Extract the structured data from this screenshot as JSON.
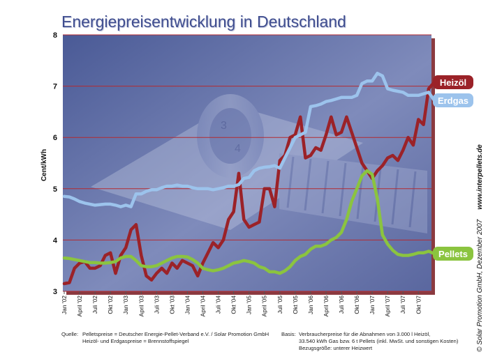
{
  "chart_data": {
    "type": "line",
    "title": "Energiepreisentwicklung in Deutschland",
    "ylabel": "Cent/kWh",
    "xlabel": "",
    "ylim": [
      3,
      8
    ],
    "yticks": [
      "3",
      "4",
      "5",
      "6",
      "7",
      "8"
    ],
    "grid": "horizontal",
    "x_tick_labels": [
      "Jan '02",
      "April '02",
      "Juli '02",
      "Okt '02",
      "Jan '03",
      "April '03",
      "Juli '03",
      "Okt '03",
      "Jan '04",
      "April '04",
      "Juli '04",
      "Okt '04",
      "Jan '05",
      "April '05",
      "Juli '05",
      "Okt '05",
      "Jan '06",
      "April '06",
      "Juli '06",
      "Okt '06",
      "Jan '07",
      "April '07",
      "Juli '07",
      "Okt '07"
    ],
    "x_period": "monthly, Jan 2002 – Dec 2007",
    "series": [
      {
        "name": "Heizöl",
        "color": "#9b2228",
        "values": [
          3.15,
          3.17,
          3.45,
          3.55,
          3.58,
          3.45,
          3.45,
          3.5,
          3.7,
          3.75,
          3.35,
          3.7,
          3.85,
          4.2,
          4.3,
          3.7,
          3.3,
          3.22,
          3.35,
          3.45,
          3.35,
          3.55,
          3.45,
          3.6,
          3.55,
          3.5,
          3.3,
          3.55,
          3.75,
          3.95,
          3.85,
          4.0,
          4.4,
          4.55,
          5.3,
          4.4,
          4.25,
          4.3,
          4.35,
          5.0,
          5.0,
          4.65,
          5.55,
          5.65,
          6.0,
          6.05,
          6.4,
          5.6,
          5.65,
          5.8,
          5.75,
          6.05,
          6.4,
          6.05,
          6.1,
          6.4,
          6.1,
          5.8,
          5.5,
          5.35,
          5.2,
          5.35,
          5.45,
          5.6,
          5.65,
          5.55,
          5.75,
          6.0,
          5.85,
          6.35,
          6.25,
          6.95
        ]
      },
      {
        "name": "Erdgas",
        "color": "#9cc3ec",
        "values": [
          4.85,
          4.84,
          4.8,
          4.75,
          4.72,
          4.7,
          4.68,
          4.69,
          4.7,
          4.7,
          4.68,
          4.65,
          4.68,
          4.65,
          4.9,
          4.9,
          4.95,
          4.98,
          4.98,
          5.02,
          5.05,
          5.05,
          5.07,
          5.05,
          5.05,
          5.02,
          5.0,
          5.0,
          5.0,
          4.98,
          5.0,
          5.02,
          5.05,
          5.05,
          5.08,
          5.2,
          5.22,
          5.35,
          5.4,
          5.42,
          5.43,
          5.45,
          5.4,
          5.6,
          5.8,
          6.0,
          6.05,
          6.1,
          6.6,
          6.62,
          6.65,
          6.7,
          6.72,
          6.75,
          6.78,
          6.78,
          6.78,
          6.82,
          7.05,
          7.1,
          7.1,
          7.25,
          7.2,
          6.95,
          6.92,
          6.9,
          6.88,
          6.82,
          6.82,
          6.82,
          6.85,
          6.88
        ]
      },
      {
        "name": "Pellets",
        "color": "#8bc43f",
        "values": [
          3.65,
          3.64,
          3.62,
          3.6,
          3.58,
          3.56,
          3.56,
          3.55,
          3.55,
          3.56,
          3.58,
          3.65,
          3.68,
          3.68,
          3.6,
          3.5,
          3.48,
          3.48,
          3.5,
          3.55,
          3.6,
          3.65,
          3.68,
          3.68,
          3.67,
          3.62,
          3.55,
          3.45,
          3.42,
          3.4,
          3.42,
          3.45,
          3.5,
          3.55,
          3.57,
          3.6,
          3.58,
          3.55,
          3.48,
          3.45,
          3.38,
          3.38,
          3.35,
          3.4,
          3.48,
          3.6,
          3.68,
          3.72,
          3.82,
          3.88,
          3.88,
          3.92,
          4.0,
          4.05,
          4.15,
          4.4,
          4.75,
          5.0,
          5.25,
          5.35,
          5.28,
          4.8,
          4.1,
          3.92,
          3.8,
          3.72,
          3.7,
          3.7,
          3.72,
          3.75,
          3.75,
          3.78
        ]
      }
    ],
    "legend": "right, labels at line ends"
  },
  "source": {
    "quelle_label": "Quelle:",
    "quelle_line1": "Pelletspreise = Deutscher Energie-Pellet-Verband e.V. / Solar Promotion GmbH",
    "quelle_line2": "Heizöl- und Erdgaspreise = Brennstoffspiegel",
    "basis_label": "Basis:",
    "basis_line1": "Verbraucherpreise für die Abnahmen von 3.000 l Heizöl,",
    "basis_line2": "33.540 kWh Gas bzw. 6 t Pellets (inkl. MwSt. und sonstigen Kosten)",
    "basis_line3": "Bezugsgröße: unterer Heizwert"
  },
  "credit": {
    "copyright": "© Solar Promotion GmbH, Dezember 2007",
    "url": "www.interpellets.de"
  }
}
